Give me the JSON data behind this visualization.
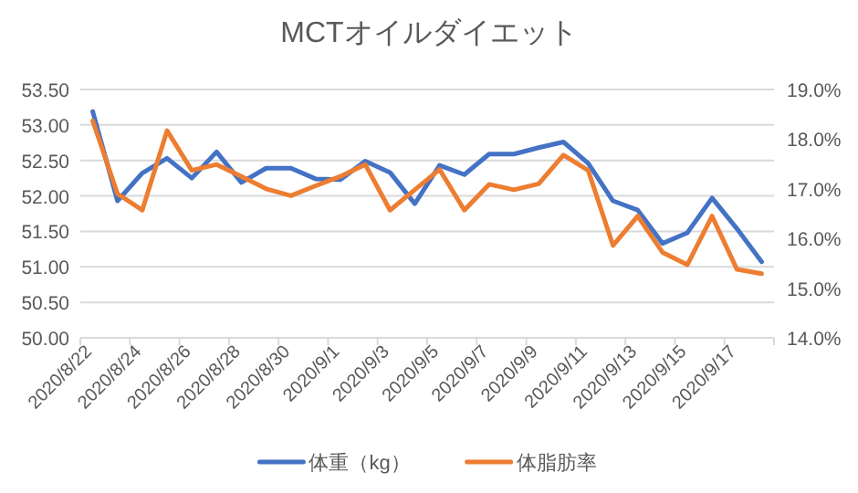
{
  "chart_data": {
    "type": "line",
    "title": "MCTオイルダイエット",
    "categories": [
      "2020/8/22",
      null,
      "2020/8/24",
      null,
      "2020/8/26",
      null,
      "2020/8/28",
      null,
      "2020/8/30",
      null,
      "2020/9/1",
      null,
      "2020/9/3",
      null,
      "2020/9/5",
      null,
      "2020/9/7",
      null,
      "2020/9/9",
      null,
      "2020/9/11",
      null,
      "2020/9/13",
      null,
      "2020/9/15",
      null,
      "2020/9/17",
      null
    ],
    "series": [
      {
        "name": "体重（kg）",
        "color": "#4472c4",
        "values": [
          53.19,
          51.93,
          52.32,
          52.53,
          52.25,
          52.62,
          52.19,
          52.39,
          52.39,
          52.24,
          52.23,
          52.49,
          52.33,
          51.89,
          52.43,
          52.3,
          52.59,
          52.59,
          52.68,
          52.76,
          52.46,
          51.93,
          51.8,
          51.33,
          51.48,
          51.97,
          51.54,
          51.07
        ]
      },
      {
        "name": "体脂肪率",
        "color": "#ed7d31",
        "axis": "y2",
        "values": [
          18.37,
          16.9,
          16.57,
          18.17,
          17.37,
          17.49,
          17.25,
          17.0,
          16.86,
          17.06,
          17.25,
          17.49,
          16.57,
          16.98,
          17.39,
          16.57,
          17.09,
          16.98,
          17.1,
          17.68,
          17.37,
          15.86,
          16.45,
          15.72,
          15.47,
          16.45,
          15.38,
          15.29
        ]
      }
    ],
    "ylim": [
      50,
      53.5
    ],
    "yticks": [
      {
        "value": 50,
        "label": "50.00"
      },
      {
        "value": 50.5,
        "label": "50.50"
      },
      {
        "value": 51,
        "label": "51.00"
      },
      {
        "value": 51.5,
        "label": "51.50"
      },
      {
        "value": 52,
        "label": "52.00"
      },
      {
        "value": 52.5,
        "label": "52.50"
      },
      {
        "value": 53,
        "label": "53.00"
      },
      {
        "value": 53.5,
        "label": "53.50"
      }
    ],
    "y2lim": [
      14,
      19
    ],
    "y2ticks": [
      {
        "value": 14,
        "label": "14.0%"
      },
      {
        "value": 15,
        "label": "15.0%"
      },
      {
        "value": 16,
        "label": "16.0%"
      },
      {
        "value": 17,
        "label": "17.0%"
      },
      {
        "value": 18,
        "label": "18.0%"
      },
      {
        "value": 19,
        "label": "19.0%"
      }
    ],
    "grid": "y",
    "legend": "bottom"
  }
}
